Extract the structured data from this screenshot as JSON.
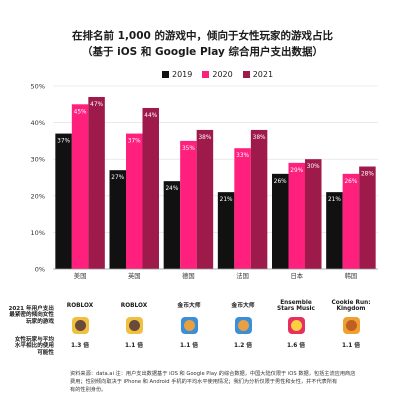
{
  "title_lines": [
    "在排名前 1,000 的游戏中，倾向于女性玩家的游戏占比",
    "（基于 iOS 和 Google Play 综合用户支出数据）"
  ],
  "colors": {
    "2019": "#111111",
    "2020": "#ff1f7d",
    "2021": "#9e1a4a",
    "grid": "#dddddd"
  },
  "chart_data": {
    "type": "bar",
    "categories": [
      "美国",
      "英国",
      "德国",
      "法国",
      "日本",
      "韩国"
    ],
    "series": [
      {
        "name": "2019",
        "values": [
          37,
          27,
          24,
          21,
          26,
          21
        ],
        "labels": [
          "37%",
          "27%",
          "24%",
          "21%",
          "26%",
          "21%"
        ]
      },
      {
        "name": "2020",
        "values": [
          45,
          37,
          35,
          33,
          29,
          26
        ],
        "labels": [
          "45%",
          "37%",
          "35%",
          "33%",
          "29%",
          "26%"
        ]
      },
      {
        "name": "2021",
        "values": [
          47,
          44,
          38,
          38,
          30,
          28
        ],
        "labels": [
          "47%",
          "44%",
          "38%",
          "38%",
          "30%",
          "28%"
        ]
      }
    ],
    "ylim": [
      0,
      50
    ],
    "yticks": [
      0,
      10,
      20,
      30,
      40,
      50
    ],
    "ytick_labels": [
      "0%",
      "10%",
      "20%",
      "30%",
      "40%",
      "50%"
    ],
    "legend_position": "top-center",
    "grid": true
  },
  "table": {
    "row_labels": [
      [
        "2021 年用户支出",
        "最紧密的倾向女性",
        "玩家的游戏"
      ],
      [
        "女性玩家与平均",
        "水平相比的使用",
        "可能性"
      ]
    ],
    "games": [
      {
        "name": "ROBLOX",
        "ratio": "1.3 倍",
        "icon": "roblox-icon",
        "colors": [
          "#f0c040",
          "#6a4a3a"
        ]
      },
      {
        "name": "ROBLOX",
        "ratio": "1.1 倍",
        "icon": "roblox-icon",
        "colors": [
          "#f0c040",
          "#6a4a3a"
        ]
      },
      {
        "name": "金币大师",
        "ratio": "1.1 倍",
        "icon": "coin-master-icon",
        "colors": [
          "#3a8fd8",
          "#e8a040"
        ]
      },
      {
        "name": "金币大师",
        "ratio": "1.2 倍",
        "icon": "coin-master-icon",
        "colors": [
          "#3a8fd8",
          "#e8a040"
        ]
      },
      {
        "name": "Ensemble Stars Music",
        "ratio": "1.6 倍",
        "icon": "ensemble-stars-icon",
        "colors": [
          "#e83060",
          "#f8d040"
        ]
      },
      {
        "name": "Cookie Run: Kingdom",
        "ratio": "1.1 倍",
        "icon": "cookie-run-icon",
        "colors": [
          "#f0a030",
          "#c06020"
        ]
      }
    ]
  },
  "footnote_lines": [
    "资料来源：data.ai 注：用户支出数据基于 iOS 和 Google Play 的综合数据，中国大陆仅限于 iOS 数据，包括主流应用商店",
    "费用；性别倾向取决于 iPhone 和 Android 手机的平均水平使用情况；我们为分析仅限于男性和女性，并不代表所有",
    "有的性别身份。"
  ]
}
